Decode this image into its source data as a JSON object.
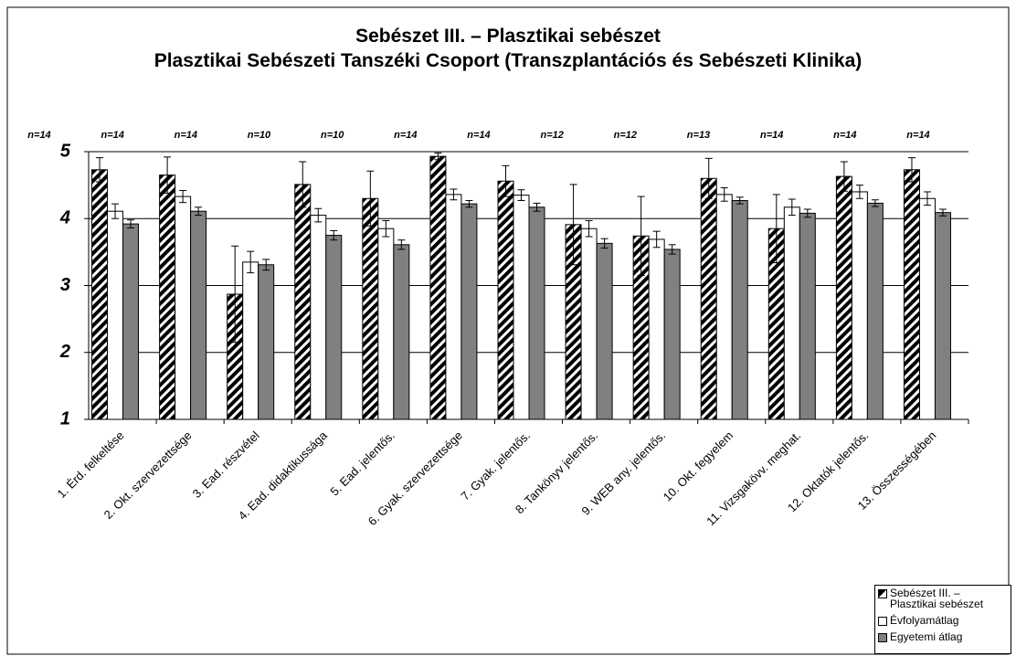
{
  "chart_data": {
    "type": "bar",
    "title": "Sebészet III. – Plasztikai sebészet",
    "subtitle": "Plasztikai Sebészeti Tanszéki Csoport (Transzplantációs és Sebészeti Klinika)",
    "annotations": [
      "n=14",
      "n=14",
      "n=14",
      "n=10",
      "n=10",
      "n=14",
      "n=14",
      "n=12",
      "n=12",
      "n=13",
      "n=14",
      "n=14",
      "n=14"
    ],
    "categories": [
      "1. Érd. felkeltése",
      "2. Okt. szervezettsége",
      "3. Ead. részvétel",
      "4. Ead. didaktikussága",
      "5. Ead. jelentős.",
      "6. Gyak. szervezettsége",
      "7. Gyak. jelentős.",
      "8. Tankönyv jelentős.",
      "9. WEB any. jelentős.",
      "10. Okt. fegyelem",
      "11. Vizsgakövv. meghat.",
      "12. Oktatók jelentős.",
      "13. Összességében"
    ],
    "series": [
      {
        "name": "Sebészet III. – Plasztikai sebészet",
        "color": "#000000",
        "hatch": true,
        "values": [
          4.73,
          4.65,
          2.87,
          4.51,
          4.3,
          4.93,
          4.56,
          3.91,
          3.74,
          4.6,
          3.85,
          4.63,
          4.73
        ],
        "errors": [
          0.18,
          0.27,
          0.72,
          0.34,
          0.41,
          0.05,
          0.23,
          0.6,
          0.59,
          0.3,
          0.51,
          0.22,
          0.18
        ]
      },
      {
        "name": "Évfolyamátlag",
        "color": "#ffffff",
        "hatch": false,
        "values": [
          4.11,
          4.33,
          3.35,
          4.05,
          3.85,
          4.36,
          4.35,
          3.85,
          3.69,
          4.36,
          4.17,
          4.4,
          4.3
        ],
        "errors": [
          0.11,
          0.09,
          0.16,
          0.1,
          0.12,
          0.08,
          0.08,
          0.12,
          0.12,
          0.1,
          0.12,
          0.1,
          0.1
        ]
      },
      {
        "name": "Egyetemi átlag",
        "color": "#808080",
        "hatch": false,
        "values": [
          3.92,
          4.11,
          3.31,
          3.75,
          3.61,
          4.22,
          4.17,
          3.63,
          3.54,
          4.27,
          4.08,
          4.23,
          4.09
        ],
        "errors": [
          0.06,
          0.06,
          0.08,
          0.07,
          0.07,
          0.05,
          0.06,
          0.07,
          0.07,
          0.05,
          0.06,
          0.05,
          0.05
        ]
      }
    ],
    "ylim": [
      1,
      5
    ],
    "yticks": [
      1,
      2,
      3,
      4,
      5
    ],
    "grid": true,
    "legend": "bottom-right"
  }
}
